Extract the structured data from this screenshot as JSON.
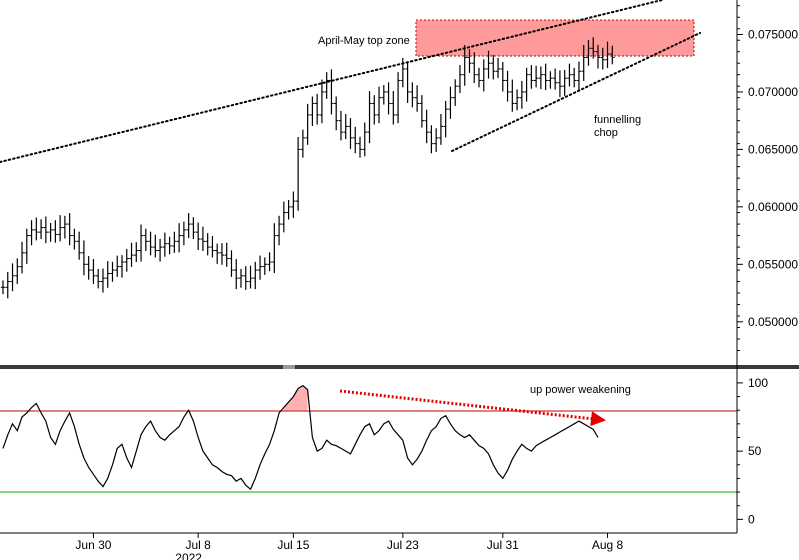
{
  "chart_data": [
    {
      "type": "ohlc",
      "panel": "price",
      "ylim": [
        0.0465,
        0.078
      ],
      "yticks": [
        "0.050000",
        "0.055000",
        "0.060000",
        "0.065000",
        "0.070000",
        "0.075000"
      ],
      "xticks": [
        {
          "label": "Jun 30",
          "i": 19
        },
        {
          "label": "Jul 8",
          "i": 41
        },
        {
          "label": "Jul 15",
          "i": 61
        },
        {
          "label": "Jul 23",
          "i": 84
        },
        {
          "label": "Jul 31",
          "i": 105
        },
        {
          "label": "Aug 8",
          "i": 127
        }
      ],
      "year_label": "2022",
      "close": [
        0.053,
        0.0535,
        0.054,
        0.0548,
        0.056,
        0.0575,
        0.058,
        0.0578,
        0.0582,
        0.0578,
        0.058,
        0.0576,
        0.0582,
        0.0585,
        0.0575,
        0.057,
        0.056,
        0.055,
        0.0545,
        0.054,
        0.0535,
        0.0538,
        0.0542,
        0.0545,
        0.0548,
        0.0552,
        0.0555,
        0.0558,
        0.0562,
        0.0575,
        0.057,
        0.0565,
        0.0562,
        0.0565,
        0.0568,
        0.0566,
        0.057,
        0.0575,
        0.058,
        0.0585,
        0.0578,
        0.0572,
        0.057,
        0.0565,
        0.0562,
        0.056,
        0.0558,
        0.0555,
        0.0545,
        0.0538,
        0.054,
        0.0535,
        0.0538,
        0.0545,
        0.0548,
        0.055,
        0.0552,
        0.0575,
        0.0585,
        0.0595,
        0.06,
        0.0605,
        0.065,
        0.066,
        0.068,
        0.069,
        0.068,
        0.07,
        0.071,
        0.069,
        0.0675,
        0.0665,
        0.067,
        0.066,
        0.0655,
        0.065,
        0.0665,
        0.069,
        0.068,
        0.0695,
        0.07,
        0.069,
        0.068,
        0.071,
        0.072,
        0.07,
        0.0695,
        0.069,
        0.0675,
        0.0665,
        0.0655,
        0.066,
        0.067,
        0.0685,
        0.0695,
        0.0705,
        0.0715,
        0.073,
        0.0725,
        0.0715,
        0.071,
        0.072,
        0.0725,
        0.0718,
        0.072,
        0.071,
        0.07,
        0.069,
        0.0695,
        0.07,
        0.0715,
        0.071,
        0.0712,
        0.0715,
        0.071,
        0.0712,
        0.0708,
        0.0705,
        0.0712,
        0.0715,
        0.071,
        0.0718,
        0.073,
        0.0738,
        0.0735,
        0.073,
        0.0728,
        0.0733,
        0.073
      ]
    },
    {
      "type": "line",
      "panel": "oscillator",
      "ylim": [
        -10,
        108
      ],
      "yticks": [
        "0",
        "50",
        "100"
      ],
      "levels": [
        {
          "value": 80,
          "color": "#c00000"
        },
        {
          "value": 20,
          "color": "#00b000"
        }
      ],
      "values": [
        52,
        62,
        70,
        65,
        75,
        78,
        82,
        85,
        78,
        72,
        60,
        55,
        65,
        72,
        78,
        68,
        55,
        45,
        38,
        33,
        28,
        24,
        30,
        40,
        52,
        55,
        45,
        38,
        50,
        62,
        68,
        72,
        65,
        60,
        58,
        62,
        65,
        68,
        75,
        80,
        72,
        60,
        50,
        45,
        40,
        38,
        35,
        33,
        32,
        28,
        30,
        25,
        22,
        30,
        40,
        48,
        55,
        65,
        78,
        82,
        86,
        90,
        96,
        98,
        95,
        60,
        50,
        52,
        58,
        55,
        54,
        52,
        50,
        48,
        55,
        62,
        68,
        70,
        62,
        65,
        70,
        72,
        66,
        62,
        58,
        45,
        40,
        44,
        50,
        58,
        65,
        68,
        74,
        76,
        70,
        65,
        62,
        60,
        62,
        58,
        54,
        52,
        48,
        40,
        34,
        30,
        36,
        44,
        50,
        55,
        52,
        50,
        54,
        56,
        58,
        60,
        62,
        64,
        66,
        68,
        70,
        72,
        70,
        68,
        66,
        60
      ]
    }
  ],
  "annotations": {
    "zone_label": "April-May top zone",
    "funnel_label_1": "funnelling",
    "funnel_label_2": "chop",
    "weakening_label": "up power weakening"
  },
  "colors": {
    "zone_fill": "#ff9a9a",
    "zone_border": "#c00000",
    "arrow": "#e00000",
    "osc_fill": "#ffb0b0",
    "divider": "#3a3a3a"
  }
}
